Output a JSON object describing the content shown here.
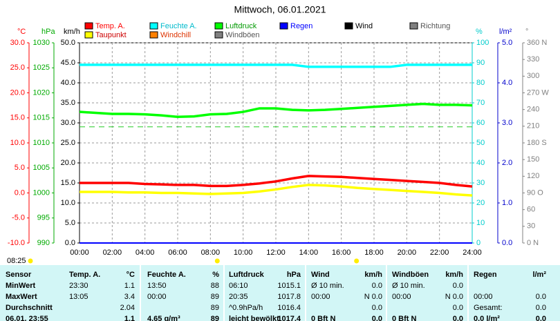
{
  "chart_data": {
    "type": "line",
    "title": "Mittwoch, 06.01.2021",
    "x": [
      0,
      1,
      2,
      3,
      4,
      5,
      6,
      7,
      8,
      9,
      10,
      11,
      12,
      13,
      14,
      15,
      16,
      17,
      18,
      19,
      20,
      21,
      22,
      23,
      24
    ],
    "xlim": [
      0,
      24
    ],
    "xticks": [
      {
        "value": 0,
        "label": "00:00"
      },
      {
        "value": 2,
        "label": "02:00"
      },
      {
        "value": 4,
        "label": "04:00"
      },
      {
        "value": 6,
        "label": "06:00"
      },
      {
        "value": 8,
        "label": "08:00"
      },
      {
        "value": 10,
        "label": "10:00"
      },
      {
        "value": 12,
        "label": "12:00"
      },
      {
        "value": 14,
        "label": "14:00"
      },
      {
        "value": 16,
        "label": "16:00"
      },
      {
        "value": 18,
        "label": "18:00"
      },
      {
        "value": 20,
        "label": "20:00"
      },
      {
        "value": 22,
        "label": "22:00"
      },
      {
        "value": 24,
        "label": "24:00"
      }
    ],
    "axes": [
      {
        "label": "°C",
        "color": "#ff0000",
        "ylim": [
          -10,
          30
        ],
        "yticks": [
          {
            "value": -10,
            "label": "-10.0"
          },
          {
            "value": -5,
            "label": "-5.0"
          },
          {
            "value": 0,
            "label": "0.0"
          },
          {
            "value": 5,
            "label": "5.0"
          },
          {
            "value": 10,
            "label": "10.0"
          },
          {
            "value": 15,
            "label": "15.0"
          },
          {
            "value": 20,
            "label": "20.0"
          },
          {
            "value": 25,
            "label": "25.0"
          },
          {
            "value": 30,
            "label": "30.0"
          }
        ]
      },
      {
        "label": "hPa",
        "color": "#00aa00",
        "ylim": [
          990,
          1030
        ],
        "yticks": [
          990,
          995,
          1000,
          1005,
          1010,
          1015,
          1020,
          1025,
          1030
        ]
      },
      {
        "label": "km/h",
        "color": "#000000",
        "ylim": [
          0,
          50
        ],
        "yticks": [
          {
            "value": 0,
            "label": "0.0"
          },
          {
            "value": 5,
            "label": "5.0"
          },
          {
            "value": 10,
            "label": "10.0"
          },
          {
            "value": 15,
            "label": "15.0"
          },
          {
            "value": 20,
            "label": "20.0"
          },
          {
            "value": 25,
            "label": "25.0"
          },
          {
            "value": 30,
            "label": "30.0"
          },
          {
            "value": 35,
            "label": "35.0"
          },
          {
            "value": 40,
            "label": "40.0"
          },
          {
            "value": 45,
            "label": "45.0"
          },
          {
            "value": 50,
            "label": "50.0"
          }
        ]
      },
      {
        "label": "%",
        "color": "#00cccc",
        "ylim": [
          0,
          100
        ],
        "yticks": [
          0,
          10,
          20,
          30,
          40,
          50,
          60,
          70,
          80,
          90,
          100
        ]
      },
      {
        "label": "l/m²",
        "color": "#0000cc",
        "ylim": [
          0,
          5
        ],
        "yticks": [
          {
            "value": 0,
            "label": "0.0"
          },
          {
            "value": 1,
            "label": "1.0"
          },
          {
            "value": 2,
            "label": "2.0"
          },
          {
            "value": 3,
            "label": "3.0"
          },
          {
            "value": 4,
            "label": "4.0"
          },
          {
            "value": 5,
            "label": "5.0"
          }
        ]
      },
      {
        "label": "°",
        "color": "#808080",
        "ylim": [
          0,
          360
        ],
        "yticks": [
          {
            "value": 0,
            "label": "0 N"
          },
          30,
          60,
          {
            "value": 90,
            "label": "90 O"
          },
          120,
          150,
          {
            "value": 180,
            "label": "180 S"
          },
          210,
          240,
          {
            "value": 270,
            "label": "270 W"
          },
          300,
          330,
          {
            "value": 360,
            "label": "360 N"
          }
        ]
      }
    ],
    "series": [
      {
        "name": "Temp. A.",
        "color": "#ff0000",
        "axis": 0,
        "values": [
          2.0,
          2.0,
          2.0,
          2.0,
          1.8,
          1.7,
          1.6,
          1.6,
          1.4,
          1.4,
          1.6,
          1.9,
          2.3,
          2.9,
          3.4,
          3.3,
          3.2,
          3.0,
          2.8,
          2.6,
          2.4,
          2.2,
          2.0,
          1.6,
          1.3
        ]
      },
      {
        "name": "Feuchte A.",
        "color": "#00ffff",
        "axis": 3,
        "values": [
          89,
          89,
          89,
          89,
          89,
          89,
          89,
          89,
          89,
          89,
          89,
          89,
          89,
          89,
          88,
          88,
          88,
          88,
          88,
          88,
          89,
          89,
          89,
          89,
          89
        ]
      },
      {
        "name": "Luftdruck",
        "color": "#00ff00",
        "axis": 1,
        "values": [
          1016.2,
          1016.0,
          1015.8,
          1015.8,
          1015.7,
          1015.5,
          1015.2,
          1015.3,
          1015.7,
          1015.8,
          1016.2,
          1016.9,
          1016.9,
          1016.6,
          1016.5,
          1016.6,
          1016.8,
          1017.0,
          1017.2,
          1017.4,
          1017.6,
          1017.8,
          1017.6,
          1017.6,
          1017.5
        ]
      },
      {
        "name": "Regen",
        "color": "#0000ff",
        "axis": 4,
        "values": [
          0,
          0,
          0,
          0,
          0,
          0,
          0,
          0,
          0,
          0,
          0,
          0,
          0,
          0,
          0,
          0,
          0,
          0,
          0,
          0,
          0,
          0,
          0,
          0,
          0
        ]
      },
      {
        "name": "Wind",
        "color": "#000000"
      },
      {
        "name": "Richtung",
        "color": "#808080"
      },
      {
        "name": "Taupunkt",
        "color": "#ffff00",
        "axis": 0,
        "values": [
          0.2,
          0.2,
          0.2,
          0.1,
          0.1,
          0.0,
          0.0,
          -0.1,
          -0.2,
          -0.1,
          0.0,
          0.3,
          0.7,
          1.2,
          1.6,
          1.5,
          1.3,
          1.0,
          0.8,
          0.6,
          0.4,
          0.2,
          0.0,
          -0.3,
          -0.5
        ]
      },
      {
        "name": "Windchill",
        "color": "#ff8000"
      },
      {
        "name": "Windböen",
        "color": "#808080"
      }
    ],
    "pressure_reference": 1013.2,
    "sun_markers": [
      8.42,
      16.93
    ],
    "sunrise_label": "08:25",
    "grid": true
  },
  "table": {
    "header": [
      "Sensor",
      "Temp. A.",
      "°C",
      "Feuchte A.",
      "%",
      "Luftdruck",
      "hPa",
      "Wind",
      "km/h",
      "Windböen",
      "km/h",
      "Regen",
      "l/m²"
    ],
    "rows": [
      [
        "MinWert",
        "23:30",
        "1.1",
        "13:50",
        "88",
        "06:10",
        "1015.1",
        "Ø 10 min.",
        "0.0",
        "Ø 10 min.",
        "0.0",
        null,
        null
      ],
      [
        "MaxWert",
        "13:05",
        "3.4",
        "00:00",
        "89",
        "20:35",
        "1017.8",
        "00:00",
        "N 0.0",
        "00:00",
        "N 0.0",
        "00:00",
        "0.0"
      ],
      [
        "Durchschnitt",
        null,
        "2.04",
        null,
        "89",
        "^0.9hPa/h",
        "1016.4",
        null,
        "0.0",
        null,
        "0.0",
        "Gesamt:",
        "0.0"
      ],
      [
        "06.01. 23:55",
        null,
        "1.1",
        "4.65 g/m³",
        "89",
        "leicht bewölkt",
        "1017.4",
        "0 Bft N",
        "0.0",
        "0 Bft N",
        "0.0",
        "0.0 l/m²",
        "0.0"
      ]
    ]
  }
}
